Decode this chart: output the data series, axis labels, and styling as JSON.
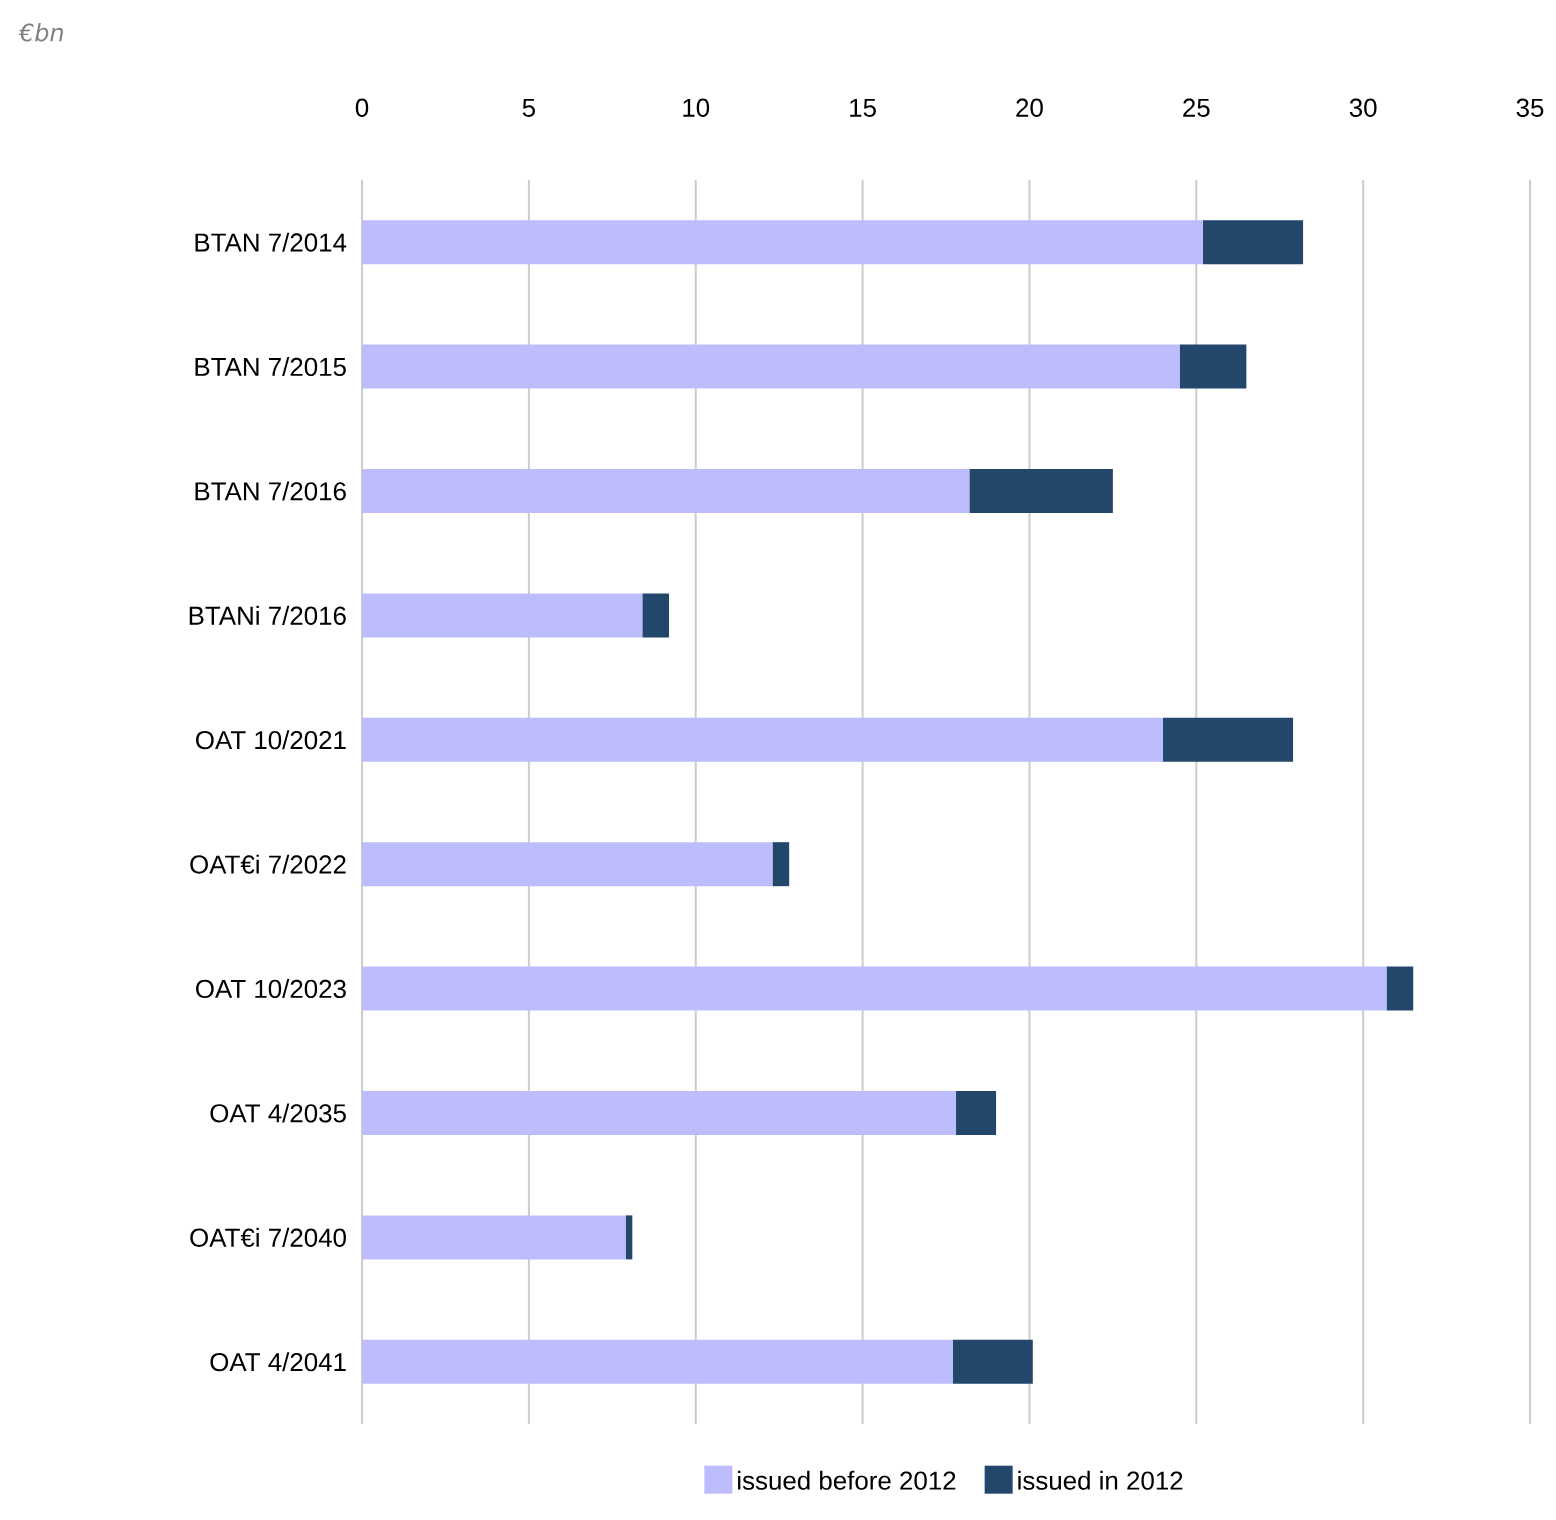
{
  "chart_data": {
    "type": "bar",
    "orientation": "horizontal",
    "stacked": true,
    "subtitle": "€bn",
    "categories": [
      "BTAN 7/2014",
      "BTAN 7/2015",
      "BTAN 7/2016",
      "BTANi 7/2016",
      "OAT 10/2021",
      "OAT€i 7/2022",
      "OAT 10/2023",
      "OAT 4/2035",
      "OAT€i 7/2040",
      "OAT 4/2041"
    ],
    "series": [
      {
        "name": "issued before 2012",
        "color": "#bdbdfd",
        "values": [
          25.2,
          24.5,
          18.2,
          8.4,
          24.0,
          12.3,
          30.7,
          17.8,
          7.9,
          17.7
        ]
      },
      {
        "name": "issued in 2012",
        "color": "#23466b",
        "values": [
          3.0,
          2.0,
          4.3,
          0.8,
          3.9,
          0.5,
          0.8,
          1.2,
          0.2,
          2.4
        ]
      }
    ],
    "xlim": [
      0,
      35
    ],
    "xticks": [
      0,
      5,
      10,
      15,
      20,
      25,
      30,
      35
    ],
    "grid": "x",
    "legend": "bottom"
  }
}
